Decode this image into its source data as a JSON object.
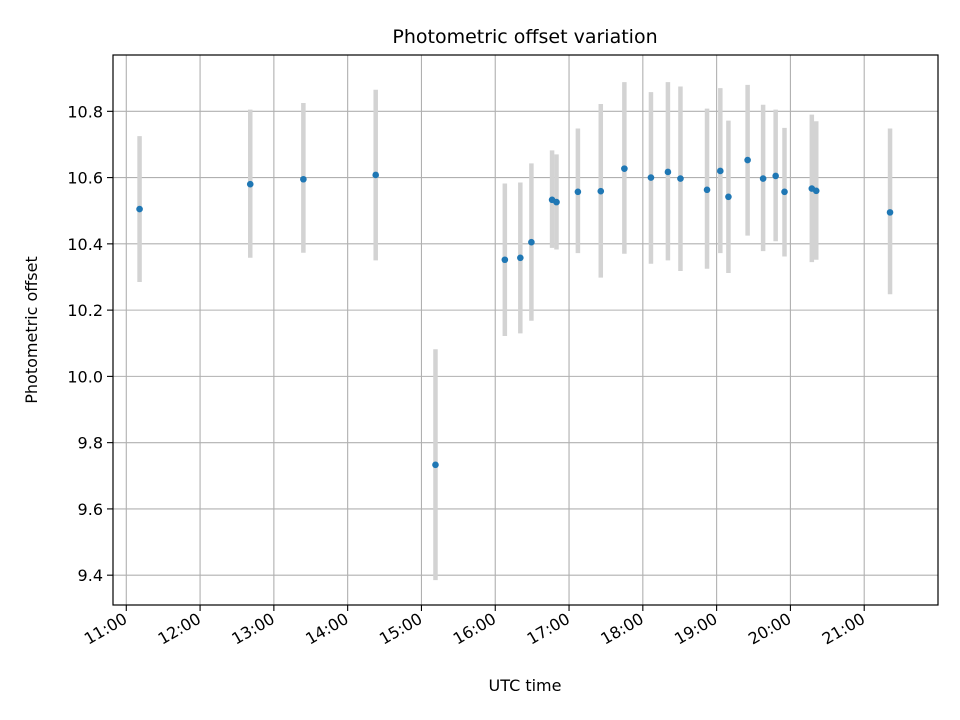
{
  "chart_data": {
    "type": "scatter",
    "title": "Photometric offset variation",
    "xlabel": "UTC time",
    "ylabel": "Photometric offset",
    "x_unit": "UTC hour of day",
    "xlim": [
      10.82,
      22.0
    ],
    "ylim": [
      9.31,
      10.97
    ],
    "x_ticks": [
      {
        "value": 11,
        "label": "11:00"
      },
      {
        "value": 12,
        "label": "12:00"
      },
      {
        "value": 13,
        "label": "13:00"
      },
      {
        "value": 14,
        "label": "14:00"
      },
      {
        "value": 15,
        "label": "15:00"
      },
      {
        "value": 16,
        "label": "16:00"
      },
      {
        "value": 17,
        "label": "17:00"
      },
      {
        "value": 18,
        "label": "18:00"
      },
      {
        "value": 19,
        "label": "19:00"
      },
      {
        "value": 20,
        "label": "20:00"
      },
      {
        "value": 21,
        "label": "21:00"
      }
    ],
    "y_ticks": [
      {
        "value": 9.4,
        "label": "9.4"
      },
      {
        "value": 9.6,
        "label": "9.6"
      },
      {
        "value": 9.8,
        "label": "9.8"
      },
      {
        "value": 10.0,
        "label": "10.0"
      },
      {
        "value": 10.2,
        "label": "10.2"
      },
      {
        "value": 10.4,
        "label": "10.4"
      },
      {
        "value": 10.6,
        "label": "10.6"
      },
      {
        "value": 10.8,
        "label": "10.8"
      }
    ],
    "grid": true,
    "marker_color": "#1f77b4",
    "errorbar_color": "#d3d3d3",
    "points": [
      {
        "x": 11.18,
        "y": 10.505,
        "lo": 10.285,
        "hi": 10.725
      },
      {
        "x": 12.68,
        "y": 10.58,
        "lo": 10.358,
        "hi": 10.805
      },
      {
        "x": 13.4,
        "y": 10.595,
        "lo": 10.373,
        "hi": 10.825
      },
      {
        "x": 14.38,
        "y": 10.608,
        "lo": 10.35,
        "hi": 10.865
      },
      {
        "x": 15.19,
        "y": 9.733,
        "lo": 9.385,
        "hi": 10.082
      },
      {
        "x": 16.13,
        "y": 10.352,
        "lo": 10.122,
        "hi": 10.582
      },
      {
        "x": 16.34,
        "y": 10.358,
        "lo": 10.13,
        "hi": 10.585
      },
      {
        "x": 16.49,
        "y": 10.405,
        "lo": 10.168,
        "hi": 10.643
      },
      {
        "x": 16.77,
        "y": 10.533,
        "lo": 10.388,
        "hi": 10.682
      },
      {
        "x": 16.83,
        "y": 10.526,
        "lo": 10.383,
        "hi": 10.67
      },
      {
        "x": 17.12,
        "y": 10.557,
        "lo": 10.372,
        "hi": 10.748
      },
      {
        "x": 17.43,
        "y": 10.559,
        "lo": 10.298,
        "hi": 10.822
      },
      {
        "x": 17.75,
        "y": 10.627,
        "lo": 10.37,
        "hi": 10.888
      },
      {
        "x": 18.11,
        "y": 10.6,
        "lo": 10.34,
        "hi": 10.858
      },
      {
        "x": 18.34,
        "y": 10.617,
        "lo": 10.35,
        "hi": 10.888
      },
      {
        "x": 18.51,
        "y": 10.597,
        "lo": 10.318,
        "hi": 10.875
      },
      {
        "x": 18.87,
        "y": 10.563,
        "lo": 10.325,
        "hi": 10.808
      },
      {
        "x": 19.05,
        "y": 10.62,
        "lo": 10.372,
        "hi": 10.87
      },
      {
        "x": 19.16,
        "y": 10.542,
        "lo": 10.312,
        "hi": 10.772
      },
      {
        "x": 19.42,
        "y": 10.653,
        "lo": 10.425,
        "hi": 10.88
      },
      {
        "x": 19.63,
        "y": 10.597,
        "lo": 10.378,
        "hi": 10.82
      },
      {
        "x": 19.8,
        "y": 10.605,
        "lo": 10.408,
        "hi": 10.805
      },
      {
        "x": 19.92,
        "y": 10.557,
        "lo": 10.362,
        "hi": 10.75
      },
      {
        "x": 20.29,
        "y": 10.567,
        "lo": 10.345,
        "hi": 10.79
      },
      {
        "x": 20.35,
        "y": 10.56,
        "lo": 10.352,
        "hi": 10.77
      },
      {
        "x": 21.35,
        "y": 10.495,
        "lo": 10.248,
        "hi": 10.748
      }
    ]
  }
}
